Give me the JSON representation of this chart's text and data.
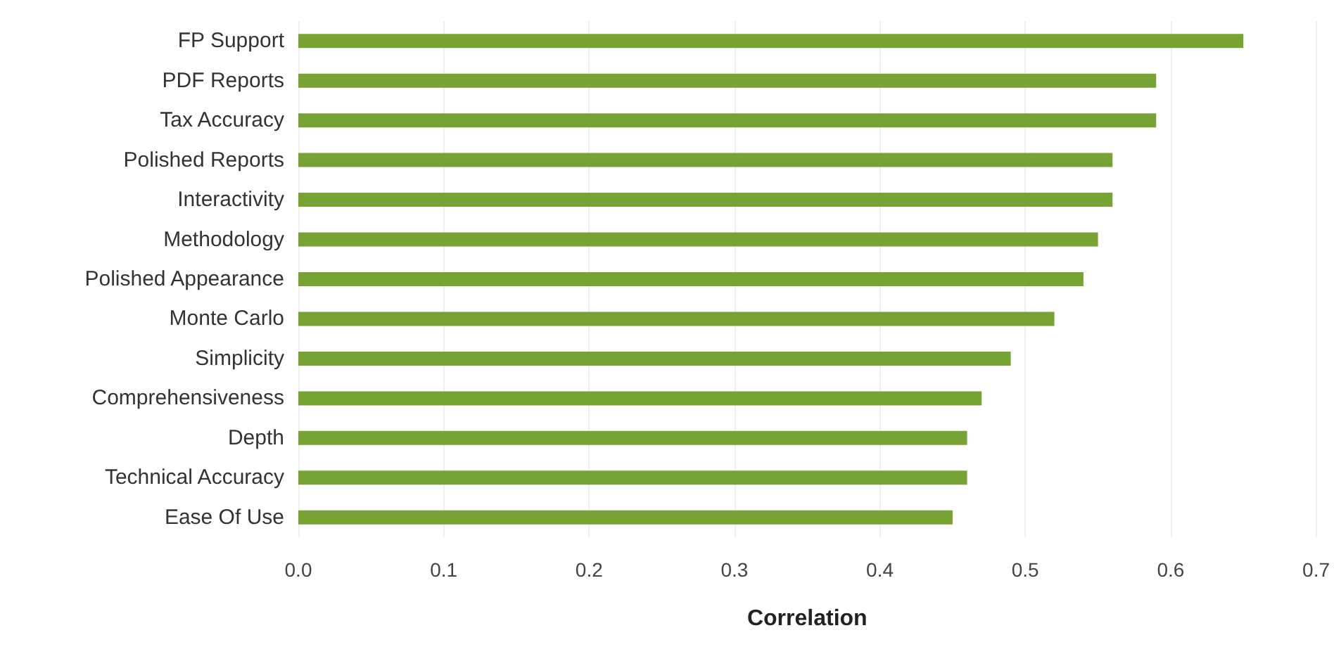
{
  "chart_data": {
    "type": "bar",
    "orientation": "horizontal",
    "xlabel": "Correlation",
    "categories": [
      "FP Support",
      "PDF Reports",
      "Tax Accuracy",
      "Polished Reports",
      "Interactivity",
      "Methodology",
      "Polished Appearance",
      "Monte Carlo",
      "Simplicity",
      "Comprehensiveness",
      "Depth",
      "Technical Accuracy",
      "Ease Of Use"
    ],
    "values": [
      0.65,
      0.59,
      0.59,
      0.56,
      0.56,
      0.55,
      0.54,
      0.52,
      0.49,
      0.47,
      0.46,
      0.46,
      0.45
    ],
    "color": "#77a234",
    "xlim": [
      0,
      0.7
    ],
    "xticks": [
      {
        "value": 0,
        "label": "0.0"
      },
      0.1,
      0.2,
      0.3,
      0.4,
      0.5,
      0.6,
      0.7
    ],
    "grid": "x"
  }
}
